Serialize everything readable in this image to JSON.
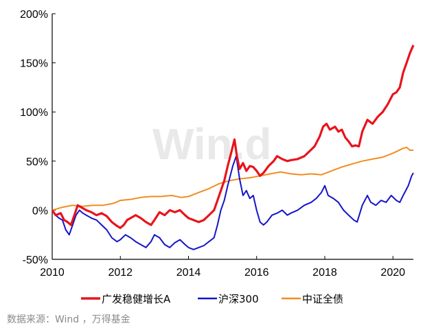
{
  "chart_data": {
    "type": "line",
    "title": "",
    "xlabel": "",
    "ylabel": "",
    "xlim": [
      2010,
      2020.6
    ],
    "ylim": [
      -50,
      200
    ],
    "x_ticks": [
      "2010",
      "2012",
      "2014",
      "2016",
      "2018",
      "2020"
    ],
    "y_ticks": [
      "200%",
      "150%",
      "100%",
      "50%",
      "0%",
      "-50%"
    ],
    "grid": false,
    "legend_position": "bottom",
    "watermark": "Win.d",
    "series": [
      {
        "name": "广发稳健增长A",
        "color": "#e8141b",
        "points": [
          [
            2010.0,
            0
          ],
          [
            2010.1,
            -5
          ],
          [
            2010.25,
            -3
          ],
          [
            2010.35,
            -10
          ],
          [
            2010.45,
            -12
          ],
          [
            2010.55,
            -15
          ],
          [
            2010.65,
            -5
          ],
          [
            2010.75,
            5
          ],
          [
            2010.85,
            3
          ],
          [
            2011.0,
            0
          ],
          [
            2011.15,
            -2
          ],
          [
            2011.3,
            -5
          ],
          [
            2011.45,
            -3
          ],
          [
            2011.6,
            -6
          ],
          [
            2011.75,
            -12
          ],
          [
            2011.9,
            -16
          ],
          [
            2012.0,
            -18
          ],
          [
            2012.1,
            -15
          ],
          [
            2012.2,
            -10
          ],
          [
            2012.3,
            -8
          ],
          [
            2012.45,
            -5
          ],
          [
            2012.6,
            -8
          ],
          [
            2012.75,
            -12
          ],
          [
            2012.9,
            -15
          ],
          [
            2013.0,
            -10
          ],
          [
            2013.15,
            -2
          ],
          [
            2013.3,
            -5
          ],
          [
            2013.45,
            0
          ],
          [
            2013.6,
            -2
          ],
          [
            2013.75,
            0
          ],
          [
            2013.9,
            -5
          ],
          [
            2014.0,
            -8
          ],
          [
            2014.15,
            -10
          ],
          [
            2014.3,
            -12
          ],
          [
            2014.45,
            -10
          ],
          [
            2014.6,
            -5
          ],
          [
            2014.75,
            0
          ],
          [
            2014.85,
            10
          ],
          [
            2014.95,
            20
          ],
          [
            2015.05,
            30
          ],
          [
            2015.15,
            45
          ],
          [
            2015.25,
            58
          ],
          [
            2015.35,
            72
          ],
          [
            2015.42,
            55
          ],
          [
            2015.5,
            42
          ],
          [
            2015.6,
            48
          ],
          [
            2015.7,
            40
          ],
          [
            2015.8,
            45
          ],
          [
            2015.9,
            44
          ],
          [
            2016.0,
            40
          ],
          [
            2016.1,
            35
          ],
          [
            2016.2,
            38
          ],
          [
            2016.35,
            45
          ],
          [
            2016.5,
            50
          ],
          [
            2016.6,
            55
          ],
          [
            2016.75,
            52
          ],
          [
            2016.9,
            50
          ],
          [
            2017.0,
            51
          ],
          [
            2017.2,
            52
          ],
          [
            2017.4,
            55
          ],
          [
            2017.55,
            60
          ],
          [
            2017.7,
            65
          ],
          [
            2017.85,
            75
          ],
          [
            2017.95,
            85
          ],
          [
            2018.05,
            88
          ],
          [
            2018.15,
            82
          ],
          [
            2018.3,
            85
          ],
          [
            2018.4,
            80
          ],
          [
            2018.5,
            82
          ],
          [
            2018.6,
            74
          ],
          [
            2018.7,
            70
          ],
          [
            2018.8,
            65
          ],
          [
            2018.9,
            66
          ],
          [
            2019.0,
            65
          ],
          [
            2019.1,
            80
          ],
          [
            2019.25,
            92
          ],
          [
            2019.4,
            88
          ],
          [
            2019.55,
            95
          ],
          [
            2019.7,
            100
          ],
          [
            2019.85,
            108
          ],
          [
            2020.0,
            118
          ],
          [
            2020.1,
            120
          ],
          [
            2020.2,
            125
          ],
          [
            2020.3,
            140
          ],
          [
            2020.4,
            150
          ],
          [
            2020.5,
            160
          ],
          [
            2020.6,
            168
          ]
        ]
      },
      {
        "name": "沪深300",
        "color": "#1414c8",
        "points": [
          [
            2010.0,
            0
          ],
          [
            2010.1,
            -5
          ],
          [
            2010.2,
            -8
          ],
          [
            2010.3,
            -10
          ],
          [
            2010.4,
            -20
          ],
          [
            2010.5,
            -25
          ],
          [
            2010.6,
            -15
          ],
          [
            2010.7,
            -5
          ],
          [
            2010.8,
            0
          ],
          [
            2010.9,
            -3
          ],
          [
            2011.0,
            -5
          ],
          [
            2011.15,
            -8
          ],
          [
            2011.3,
            -10
          ],
          [
            2011.45,
            -15
          ],
          [
            2011.6,
            -20
          ],
          [
            2011.75,
            -28
          ],
          [
            2011.9,
            -32
          ],
          [
            2012.0,
            -30
          ],
          [
            2012.15,
            -25
          ],
          [
            2012.3,
            -28
          ],
          [
            2012.45,
            -32
          ],
          [
            2012.6,
            -35
          ],
          [
            2012.75,
            -38
          ],
          [
            2012.9,
            -32
          ],
          [
            2013.0,
            -25
          ],
          [
            2013.15,
            -28
          ],
          [
            2013.3,
            -35
          ],
          [
            2013.45,
            -38
          ],
          [
            2013.6,
            -33
          ],
          [
            2013.75,
            -30
          ],
          [
            2013.9,
            -35
          ],
          [
            2014.0,
            -38
          ],
          [
            2014.15,
            -40
          ],
          [
            2014.3,
            -38
          ],
          [
            2014.45,
            -36
          ],
          [
            2014.6,
            -32
          ],
          [
            2014.75,
            -28
          ],
          [
            2014.85,
            -15
          ],
          [
            2014.95,
            0
          ],
          [
            2015.05,
            10
          ],
          [
            2015.15,
            25
          ],
          [
            2015.3,
            45
          ],
          [
            2015.4,
            55
          ],
          [
            2015.5,
            32
          ],
          [
            2015.6,
            15
          ],
          [
            2015.7,
            20
          ],
          [
            2015.8,
            12
          ],
          [
            2015.9,
            15
          ],
          [
            2016.0,
            0
          ],
          [
            2016.1,
            -12
          ],
          [
            2016.2,
            -15
          ],
          [
            2016.3,
            -12
          ],
          [
            2016.45,
            -5
          ],
          [
            2016.6,
            -3
          ],
          [
            2016.75,
            0
          ],
          [
            2016.9,
            -5
          ],
          [
            2017.0,
            -3
          ],
          [
            2017.2,
            0
          ],
          [
            2017.4,
            5
          ],
          [
            2017.6,
            8
          ],
          [
            2017.75,
            12
          ],
          [
            2017.9,
            18
          ],
          [
            2018.0,
            25
          ],
          [
            2018.1,
            15
          ],
          [
            2018.25,
            12
          ],
          [
            2018.4,
            8
          ],
          [
            2018.55,
            0
          ],
          [
            2018.7,
            -5
          ],
          [
            2018.85,
            -10
          ],
          [
            2018.95,
            -12
          ],
          [
            2019.1,
            5
          ],
          [
            2019.25,
            15
          ],
          [
            2019.35,
            8
          ],
          [
            2019.5,
            5
          ],
          [
            2019.65,
            10
          ],
          [
            2019.8,
            8
          ],
          [
            2019.95,
            15
          ],
          [
            2020.1,
            10
          ],
          [
            2020.2,
            8
          ],
          [
            2020.3,
            15
          ],
          [
            2020.45,
            25
          ],
          [
            2020.55,
            35
          ],
          [
            2020.6,
            38
          ]
        ]
      },
      {
        "name": "中证全债",
        "color": "#f28c1e",
        "points": [
          [
            2010.0,
            0
          ],
          [
            2010.3,
            3
          ],
          [
            2010.6,
            5
          ],
          [
            2010.9,
            4
          ],
          [
            2011.2,
            5
          ],
          [
            2011.5,
            5
          ],
          [
            2011.8,
            7
          ],
          [
            2012.0,
            10
          ],
          [
            2012.3,
            11
          ],
          [
            2012.6,
            13
          ],
          [
            2012.9,
            14
          ],
          [
            2013.2,
            14
          ],
          [
            2013.5,
            15
          ],
          [
            2013.8,
            13
          ],
          [
            2014.0,
            14
          ],
          [
            2014.3,
            18
          ],
          [
            2014.6,
            22
          ],
          [
            2014.9,
            27
          ],
          [
            2015.2,
            30
          ],
          [
            2015.5,
            32
          ],
          [
            2015.8,
            33
          ],
          [
            2016.1,
            35
          ],
          [
            2016.4,
            37
          ],
          [
            2016.7,
            39
          ],
          [
            2017.0,
            37
          ],
          [
            2017.3,
            36
          ],
          [
            2017.6,
            37
          ],
          [
            2017.9,
            36
          ],
          [
            2018.2,
            40
          ],
          [
            2018.5,
            44
          ],
          [
            2018.8,
            47
          ],
          [
            2019.1,
            50
          ],
          [
            2019.4,
            52
          ],
          [
            2019.7,
            54
          ],
          [
            2020.0,
            58
          ],
          [
            2020.3,
            63
          ],
          [
            2020.4,
            64
          ],
          [
            2020.5,
            61
          ],
          [
            2020.6,
            61
          ]
        ]
      }
    ]
  },
  "source_note": "数据来源：Wind ，万得基金"
}
